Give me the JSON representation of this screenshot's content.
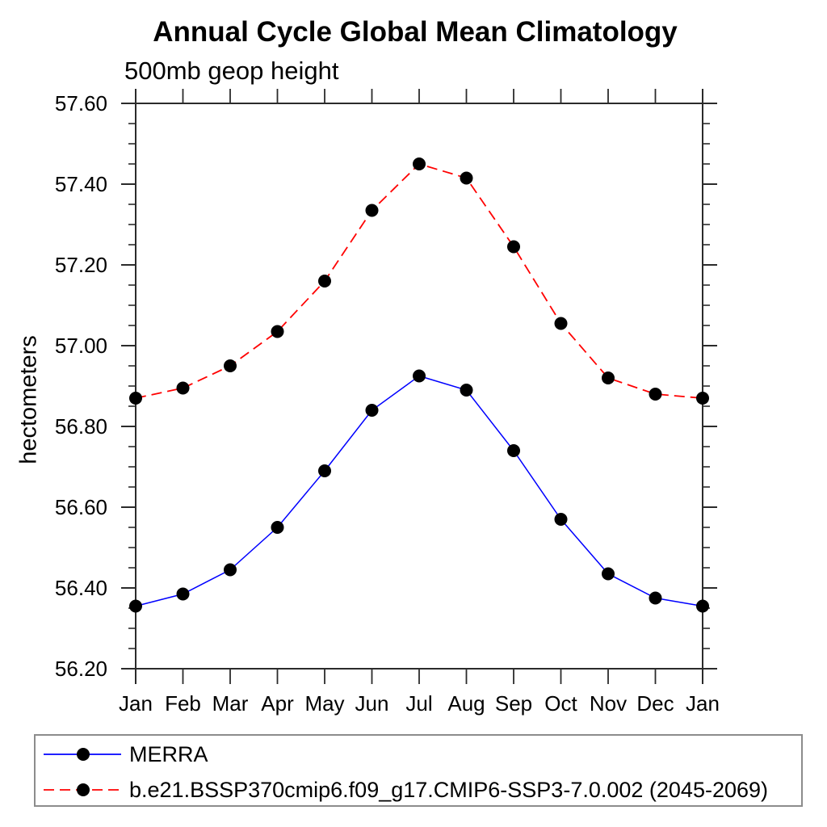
{
  "chart_data": {
    "type": "line",
    "title": "Annual Cycle Global Mean Climatology",
    "subtitle": "500mb geop height",
    "ylabel": "hectometers",
    "xlabel": "",
    "categories": [
      "Jan",
      "Feb",
      "Mar",
      "Apr",
      "May",
      "Jun",
      "Jul",
      "Aug",
      "Sep",
      "Oct",
      "Nov",
      "Dec",
      "Jan"
    ],
    "ylim": [
      56.2,
      57.6
    ],
    "y_major_step": 0.2,
    "y_minor_step": 0.05,
    "y_tick_labels": [
      "56.20",
      "56.40",
      "56.60",
      "56.80",
      "57.00",
      "57.20",
      "57.40",
      "57.60"
    ],
    "grid": false,
    "legend_position": "bottom",
    "axis_color": "#2b2b2b",
    "text_color": "#000000",
    "series": [
      {
        "name": "MERRA",
        "color": "#0000ff",
        "line_style": "solid",
        "marker": "circle",
        "marker_color": "#000000",
        "values": [
          56.355,
          56.385,
          56.445,
          56.55,
          56.69,
          56.84,
          56.925,
          56.89,
          56.74,
          56.57,
          56.435,
          56.375,
          56.355
        ]
      },
      {
        "name": "b.e21.BSSP370cmip6.f09_g17.CMIP6-SSP3-7.0.002 (2045-2069)",
        "color": "#ff0000",
        "line_style": "dashed",
        "marker": "circle",
        "marker_color": "#000000",
        "values": [
          56.87,
          56.895,
          56.95,
          57.035,
          57.16,
          57.335,
          57.45,
          57.415,
          57.245,
          57.055,
          56.92,
          56.88,
          56.87
        ]
      }
    ]
  }
}
